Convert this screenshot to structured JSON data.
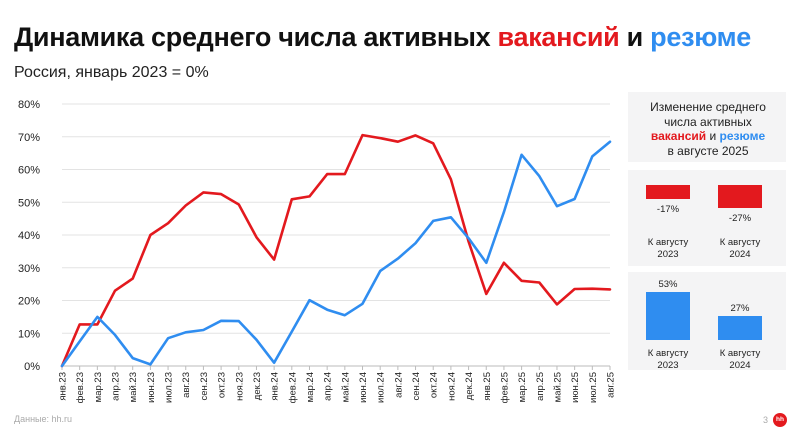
{
  "header": {
    "title_part1": "Динамика среднего числа активных",
    "title_red": "вакансий",
    "title_and": "и",
    "title_blue": "резюме",
    "subtitle": "Россия, январь 2023 = 0%"
  },
  "colors": {
    "vacancies": "#e3191e",
    "resumes": "#2f8df0",
    "grid": "#e3e3e3",
    "panel_bg": "#f4f4f5"
  },
  "side_panel": {
    "line1": "Изменение среднего",
    "line2": "числа активных",
    "red_word": "вакансий",
    "and_word": "и",
    "blue_word": "резюме",
    "line4": "в августе 2025"
  },
  "footer": {
    "source": "Данные: hh.ru",
    "page": "3",
    "logo_text": "hh"
  },
  "chart_data": [
    {
      "type": "line",
      "title": "",
      "y_tick_labels": [
        "0%",
        "10%",
        "20%",
        "30%",
        "40%",
        "50%",
        "60%",
        "70%",
        "80%"
      ],
      "ylim": [
        0,
        80
      ],
      "grid": true,
      "legend": "none",
      "categories": [
        "янв.23",
        "фев.23",
        "мар.23",
        "апр.23",
        "май.23",
        "июн.23",
        "июл.23",
        "авг.23",
        "сен.23",
        "окт.23",
        "ноя.23",
        "дек.23",
        "янв.24",
        "фев.24",
        "мар.24",
        "апр.24",
        "май.24",
        "июн.24",
        "июл.24",
        "авг.24",
        "сен.24",
        "окт.24",
        "ноя.24",
        "дек.24",
        "янв.25",
        "фев.25",
        "мар.25",
        "апр.25",
        "май.25",
        "июн.25",
        "июл.25",
        "авг.25"
      ],
      "series": [
        {
          "name": "вакансий",
          "color": "#e3191e",
          "values": [
            0,
            12.7,
            12.7,
            23,
            26.7,
            40,
            43.6,
            49,
            53,
            52.5,
            49.3,
            39.3,
            32.5,
            50.9,
            51.8,
            58.6,
            58.6,
            70.5,
            69.6,
            68.5,
            70.4,
            68,
            57,
            38,
            22,
            31.5,
            26,
            25.5,
            18.8,
            23.5,
            23.6,
            23.4
          ]
        },
        {
          "name": "резюме",
          "color": "#2f8df0",
          "values": [
            0,
            7.5,
            15,
            9.5,
            2.4,
            0.5,
            8.5,
            10.3,
            11,
            13.8,
            13.7,
            8,
            1,
            10.5,
            20.1,
            17.2,
            15.5,
            19,
            29,
            32.8,
            37.5,
            44.3,
            45.4,
            39,
            31.5,
            47,
            64.5,
            58,
            48.8,
            51,
            64,
            68.5
          ]
        }
      ]
    },
    {
      "type": "bar",
      "title": "Изменение вакансий в августе 2025",
      "categories": [
        "К августу 2023",
        "К августу 2024"
      ],
      "values": [
        -17,
        -27
      ],
      "value_labels": [
        "-17%",
        "-27%"
      ],
      "color": "#e3191e"
    },
    {
      "type": "bar",
      "title": "Изменение резюме в августе 2025",
      "categories": [
        "К августу 2023",
        "К августу 2024"
      ],
      "values": [
        53,
        27
      ],
      "value_labels": [
        "53%",
        "27%"
      ],
      "color": "#2f8df0"
    }
  ]
}
